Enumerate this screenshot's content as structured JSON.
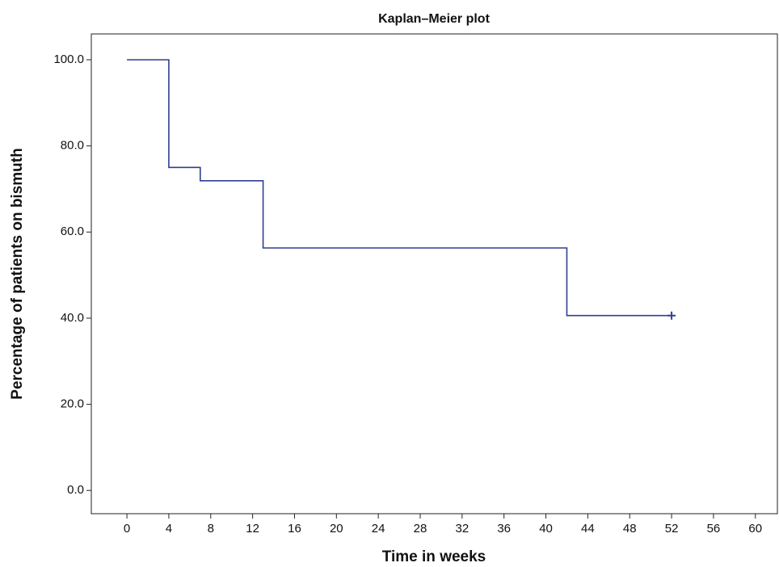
{
  "chart_data": {
    "type": "line",
    "step": "post",
    "title": "Kaplan–Meier plot",
    "x_label": "Time in weeks",
    "y_label": "Percentage of patients on bismuth",
    "x": [
      0,
      4,
      7,
      13,
      42,
      52
    ],
    "series": [
      {
        "color": "#2e3f96",
        "values": [
          100,
          75,
          71.9,
          56.3,
          40.6,
          40.6
        ],
        "censored": {
          "x": [
            52
          ],
          "values": [
            40.6
          ]
        }
      }
    ],
    "xlim": [
      -3.4,
      62.1
    ],
    "ylim": [
      -5.4,
      106
    ],
    "xticks": [
      0,
      4,
      8,
      12,
      16,
      20,
      24,
      28,
      32,
      36,
      40,
      44,
      48,
      52,
      56,
      60
    ],
    "yticks": [
      {
        "value": 0,
        "label": "0.0"
      },
      {
        "value": 20,
        "label": "20.0"
      },
      {
        "value": 40,
        "label": "40.0"
      },
      {
        "value": 60,
        "label": "60.0"
      },
      {
        "value": 80,
        "label": "80.0"
      },
      {
        "value": 100,
        "label": "100.0"
      }
    ],
    "grid": false
  }
}
